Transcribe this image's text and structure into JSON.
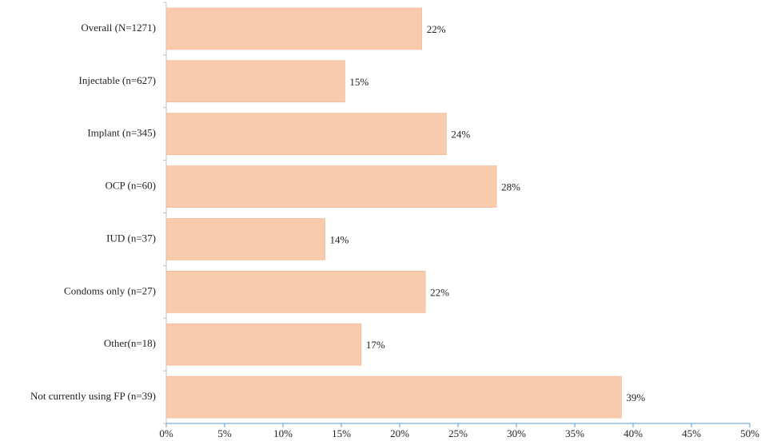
{
  "chart_data": {
    "type": "hbar",
    "categories": [
      "Overall (N=1271)",
      "Injectable (n=627)",
      "Implant (n=345)",
      "OCP (n=60)",
      "IUD (n=37)",
      "Condoms only (n=27)",
      "Other(n=18)",
      "Not currently using FP (n=39)"
    ],
    "values": [
      21.9,
      15.3,
      24.0,
      28.3,
      13.6,
      22.2,
      16.7,
      39.0
    ],
    "value_labels": [
      "22%",
      "15%",
      "24%",
      "28%",
      "14%",
      "22%",
      "17%",
      "39%"
    ],
    "color": "#f8cbad",
    "xlim": [
      0,
      50
    ],
    "xticks": [
      {
        "value": 0,
        "label": "0%"
      },
      {
        "value": 5,
        "label": "5%"
      },
      {
        "value": 10,
        "label": "10%"
      },
      {
        "value": 15,
        "label": "15%"
      },
      {
        "value": 20,
        "label": "20%"
      },
      {
        "value": 25,
        "label": "25%"
      },
      {
        "value": 30,
        "label": "30%"
      },
      {
        "value": 35,
        "label": "35%"
      },
      {
        "value": 40,
        "label": "40%"
      },
      {
        "value": 45,
        "label": "45%"
      },
      {
        "value": 50,
        "label": "50%"
      }
    ]
  }
}
